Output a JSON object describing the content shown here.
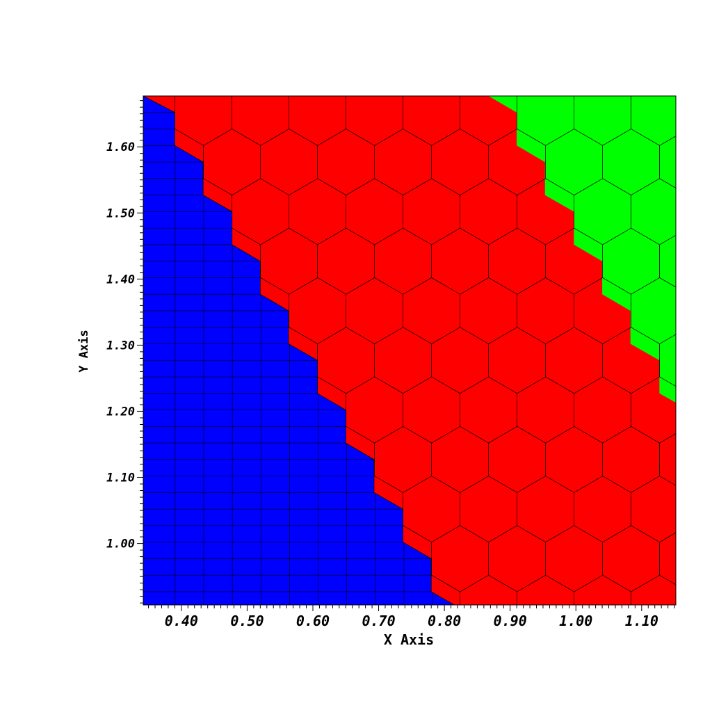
{
  "chart_data": {
    "type": "heatmap",
    "title": "",
    "xlabel": "X Axis",
    "ylabel": "Y Axis",
    "xlim": [
      0.342,
      1.152
    ],
    "ylim": [
      0.907,
      1.677
    ],
    "grid": false,
    "x_ticks": [
      "0.40",
      "0.50",
      "0.60",
      "0.70",
      "0.80",
      "0.90",
      "1.00",
      "1.10"
    ],
    "x_tick_values": [
      0.4,
      0.5,
      0.6,
      0.7,
      0.8,
      0.9,
      1.0,
      1.1
    ],
    "y_ticks": [
      "1.00",
      "1.10",
      "1.20",
      "1.30",
      "1.40",
      "1.50",
      "1.60"
    ],
    "y_tick_values": [
      1.0,
      1.1,
      1.2,
      1.3,
      1.4,
      1.5,
      1.6
    ],
    "regions": [
      {
        "color": "#0000ff",
        "mesh": "quad",
        "cell_width": 0.0435,
        "cell_height": 0.025,
        "polygon": [
          [
            0.342,
            0.907
          ],
          [
            0.342,
            1.677
          ],
          [
            0.39,
            1.652
          ],
          [
            0.39,
            1.602
          ],
          [
            0.433,
            1.577
          ],
          [
            0.433,
            1.527
          ],
          [
            0.477,
            1.502
          ],
          [
            0.477,
            1.452
          ],
          [
            0.52,
            1.427
          ],
          [
            0.52,
            1.377
          ],
          [
            0.563,
            1.352
          ],
          [
            0.563,
            1.302
          ],
          [
            0.607,
            1.277
          ],
          [
            0.607,
            1.227
          ],
          [
            0.65,
            1.202
          ],
          [
            0.65,
            1.152
          ],
          [
            0.693,
            1.127
          ],
          [
            0.693,
            1.077
          ],
          [
            0.737,
            1.052
          ],
          [
            0.737,
            1.002
          ],
          [
            0.78,
            0.977
          ],
          [
            0.78,
            0.927
          ],
          [
            0.815,
            0.907
          ]
        ]
      },
      {
        "color": "#ff0000",
        "mesh": "hex"
      },
      {
        "color": "#00ff00",
        "mesh": "hex",
        "polygon": [
          [
            0.867,
            1.677
          ],
          [
            0.91,
            1.652
          ],
          [
            0.91,
            1.602
          ],
          [
            0.953,
            1.577
          ],
          [
            0.953,
            1.527
          ],
          [
            0.997,
            1.502
          ],
          [
            0.997,
            1.452
          ],
          [
            1.04,
            1.427
          ],
          [
            1.04,
            1.377
          ],
          [
            1.083,
            1.352
          ],
          [
            1.083,
            1.302
          ],
          [
            1.127,
            1.277
          ],
          [
            1.127,
            1.227
          ],
          [
            1.152,
            1.213
          ],
          [
            1.152,
            1.677
          ]
        ]
      }
    ],
    "hex_cell": {
      "width": 0.0867,
      "side": 0.05,
      "origin": [
        0.347,
        1.652
      ]
    }
  }
}
